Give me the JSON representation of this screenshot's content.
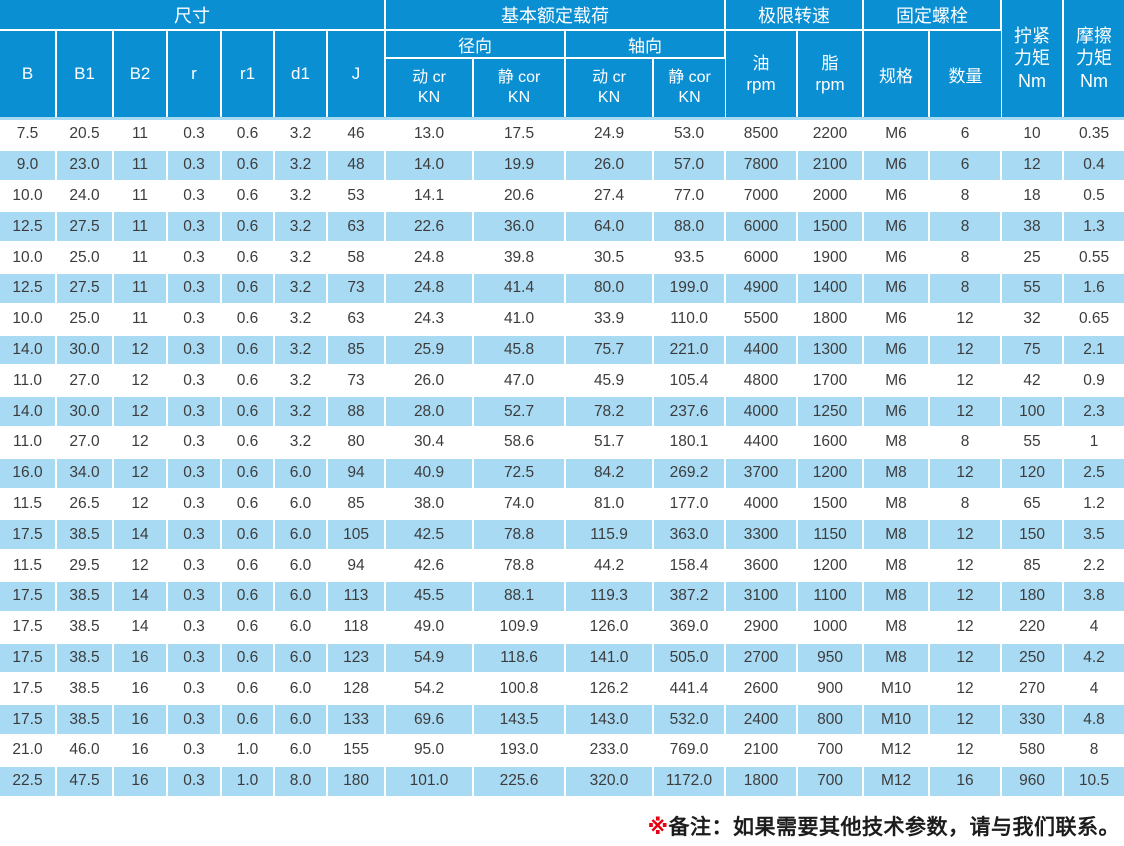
{
  "colors": {
    "header_blue": "#0a8fd3",
    "row_blue": "#a9daf3",
    "note_red": "#e60012"
  },
  "table": {
    "header": {
      "dim_group": "尺寸",
      "load_group": "基本额定载荷",
      "speed_group": "极限转速",
      "bolt_group": "固定螺栓",
      "tighten_l1": "拧紧",
      "tighten_l2": "力矩",
      "tighten_l3": "Nm",
      "friction_l1": "摩擦",
      "friction_l2": "力矩",
      "friction_l3": "Nm",
      "dim_cols": [
        "B",
        "B1",
        "B2",
        "r",
        "r1",
        "d1",
        "J"
      ],
      "radial": "径向",
      "axial": "轴向",
      "dyn": "动 cr",
      "stat": "静 cor",
      "kn": "KN",
      "oil": "油",
      "grease": "脂",
      "rpm": "rpm",
      "spec": "规格",
      "qty": "数量"
    },
    "rows": [
      [
        "7.5",
        "20.5",
        "11",
        "0.3",
        "0.6",
        "3.2",
        "46",
        "13.0",
        "17.5",
        "24.9",
        "53.0",
        "8500",
        "2200",
        "M6",
        "6",
        "10",
        "0.35"
      ],
      [
        "9.0",
        "23.0",
        "11",
        "0.3",
        "0.6",
        "3.2",
        "48",
        "14.0",
        "19.9",
        "26.0",
        "57.0",
        "7800",
        "2100",
        "M6",
        "6",
        "12",
        "0.4"
      ],
      [
        "10.0",
        "24.0",
        "11",
        "0.3",
        "0.6",
        "3.2",
        "53",
        "14.1",
        "20.6",
        "27.4",
        "77.0",
        "7000",
        "2000",
        "M6",
        "8",
        "18",
        "0.5"
      ],
      [
        "12.5",
        "27.5",
        "11",
        "0.3",
        "0.6",
        "3.2",
        "63",
        "22.6",
        "36.0",
        "64.0",
        "88.0",
        "6000",
        "1500",
        "M6",
        "8",
        "38",
        "1.3"
      ],
      [
        "10.0",
        "25.0",
        "11",
        "0.3",
        "0.6",
        "3.2",
        "58",
        "24.8",
        "39.8",
        "30.5",
        "93.5",
        "6000",
        "1900",
        "M6",
        "8",
        "25",
        "0.55"
      ],
      [
        "12.5",
        "27.5",
        "11",
        "0.3",
        "0.6",
        "3.2",
        "73",
        "24.8",
        "41.4",
        "80.0",
        "199.0",
        "4900",
        "1400",
        "M6",
        "8",
        "55",
        "1.6"
      ],
      [
        "10.0",
        "25.0",
        "11",
        "0.3",
        "0.6",
        "3.2",
        "63",
        "24.3",
        "41.0",
        "33.9",
        "110.0",
        "5500",
        "1800",
        "M6",
        "12",
        "32",
        "0.65"
      ],
      [
        "14.0",
        "30.0",
        "12",
        "0.3",
        "0.6",
        "3.2",
        "85",
        "25.9",
        "45.8",
        "75.7",
        "221.0",
        "4400",
        "1300",
        "M6",
        "12",
        "75",
        "2.1"
      ],
      [
        "11.0",
        "27.0",
        "12",
        "0.3",
        "0.6",
        "3.2",
        "73",
        "26.0",
        "47.0",
        "45.9",
        "105.4",
        "4800",
        "1700",
        "M6",
        "12",
        "42",
        "0.9"
      ],
      [
        "14.0",
        "30.0",
        "12",
        "0.3",
        "0.6",
        "3.2",
        "88",
        "28.0",
        "52.7",
        "78.2",
        "237.6",
        "4000",
        "1250",
        "M6",
        "12",
        "100",
        "2.3"
      ],
      [
        "11.0",
        "27.0",
        "12",
        "0.3",
        "0.6",
        "3.2",
        "80",
        "30.4",
        "58.6",
        "51.7",
        "180.1",
        "4400",
        "1600",
        "M8",
        "8",
        "55",
        "1"
      ],
      [
        "16.0",
        "34.0",
        "12",
        "0.3",
        "0.6",
        "6.0",
        "94",
        "40.9",
        "72.5",
        "84.2",
        "269.2",
        "3700",
        "1200",
        "M8",
        "12",
        "120",
        "2.5"
      ],
      [
        "11.5",
        "26.5",
        "12",
        "0.3",
        "0.6",
        "6.0",
        "85",
        "38.0",
        "74.0",
        "81.0",
        "177.0",
        "4000",
        "1500",
        "M8",
        "8",
        "65",
        "1.2"
      ],
      [
        "17.5",
        "38.5",
        "14",
        "0.3",
        "0.6",
        "6.0",
        "105",
        "42.5",
        "78.8",
        "115.9",
        "363.0",
        "3300",
        "1150",
        "M8",
        "12",
        "150",
        "3.5"
      ],
      [
        "11.5",
        "29.5",
        "12",
        "0.3",
        "0.6",
        "6.0",
        "94",
        "42.6",
        "78.8",
        "44.2",
        "158.4",
        "3600",
        "1200",
        "M8",
        "12",
        "85",
        "2.2"
      ],
      [
        "17.5",
        "38.5",
        "14",
        "0.3",
        "0.6",
        "6.0",
        "113",
        "45.5",
        "88.1",
        "119.3",
        "387.2",
        "3100",
        "1100",
        "M8",
        "12",
        "180",
        "3.8"
      ],
      [
        "17.5",
        "38.5",
        "14",
        "0.3",
        "0.6",
        "6.0",
        "118",
        "49.0",
        "109.9",
        "126.0",
        "369.0",
        "2900",
        "1000",
        "M8",
        "12",
        "220",
        "4"
      ],
      [
        "17.5",
        "38.5",
        "16",
        "0.3",
        "0.6",
        "6.0",
        "123",
        "54.9",
        "118.6",
        "141.0",
        "505.0",
        "2700",
        "950",
        "M8",
        "12",
        "250",
        "4.2"
      ],
      [
        "17.5",
        "38.5",
        "16",
        "0.3",
        "0.6",
        "6.0",
        "128",
        "54.2",
        "100.8",
        "126.2",
        "441.4",
        "2600",
        "900",
        "M10",
        "12",
        "270",
        "4"
      ],
      [
        "17.5",
        "38.5",
        "16",
        "0.3",
        "0.6",
        "6.0",
        "133",
        "69.6",
        "143.5",
        "143.0",
        "532.0",
        "2400",
        "800",
        "M10",
        "12",
        "330",
        "4.8"
      ],
      [
        "21.0",
        "46.0",
        "16",
        "0.3",
        "1.0",
        "6.0",
        "155",
        "95.0",
        "193.0",
        "233.0",
        "769.0",
        "2100",
        "700",
        "M12",
        "12",
        "580",
        "8"
      ],
      [
        "22.5",
        "47.5",
        "16",
        "0.3",
        "1.0",
        "8.0",
        "180",
        "101.0",
        "225.6",
        "320.0",
        "1172.0",
        "1800",
        "700",
        "M12",
        "16",
        "960",
        "10.5"
      ]
    ]
  },
  "footer": {
    "note_mark": "※",
    "note_text": "备注：如果需要其他技术参数，请与我们联系。"
  }
}
